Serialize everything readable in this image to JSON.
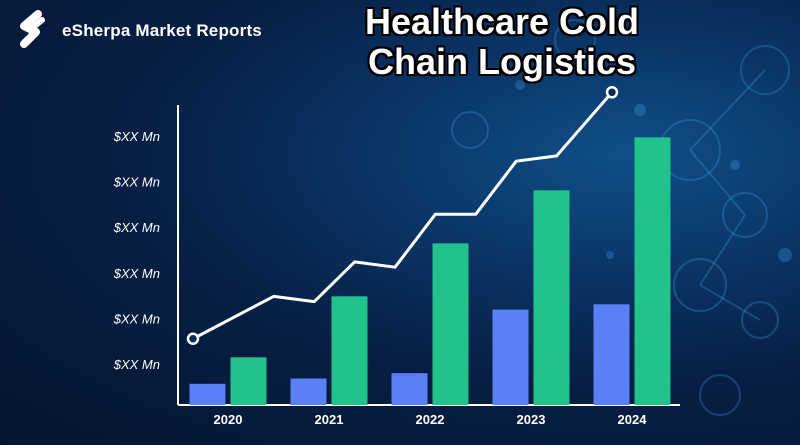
{
  "brand": {
    "name": "eSherpa Market Reports",
    "icon": "s-shape-logo-icon"
  },
  "chart_data": {
    "type": "bar",
    "title": "Healthcare Cold Chain Logistics",
    "categories": [
      "2020",
      "2021",
      "2022",
      "2023",
      "2024"
    ],
    "y_tick_labels": [
      "$XX Mn",
      "$XX Mn",
      "$XX Mn",
      "$XX Mn",
      "$XX Mn",
      "$XX Mn"
    ],
    "ylim": [
      0,
      100
    ],
    "series": [
      {
        "values": [
          8,
          10,
          12,
          36,
          38
        ],
        "color": "#5b7ff5"
      },
      {
        "values": [
          18,
          41,
          61,
          81,
          101
        ],
        "color": "#22c38a"
      }
    ],
    "trend_line": {
      "color": "#ffffff",
      "points": [
        [
          0,
          25
        ],
        [
          0.8,
          41
        ],
        [
          1.2,
          39
        ],
        [
          1.6,
          54
        ],
        [
          2.0,
          52
        ],
        [
          2.4,
          72
        ],
        [
          2.8,
          72
        ],
        [
          3.2,
          92
        ],
        [
          3.6,
          94
        ],
        [
          4.0,
          118
        ]
      ]
    },
    "grid": false,
    "legend": "none"
  }
}
